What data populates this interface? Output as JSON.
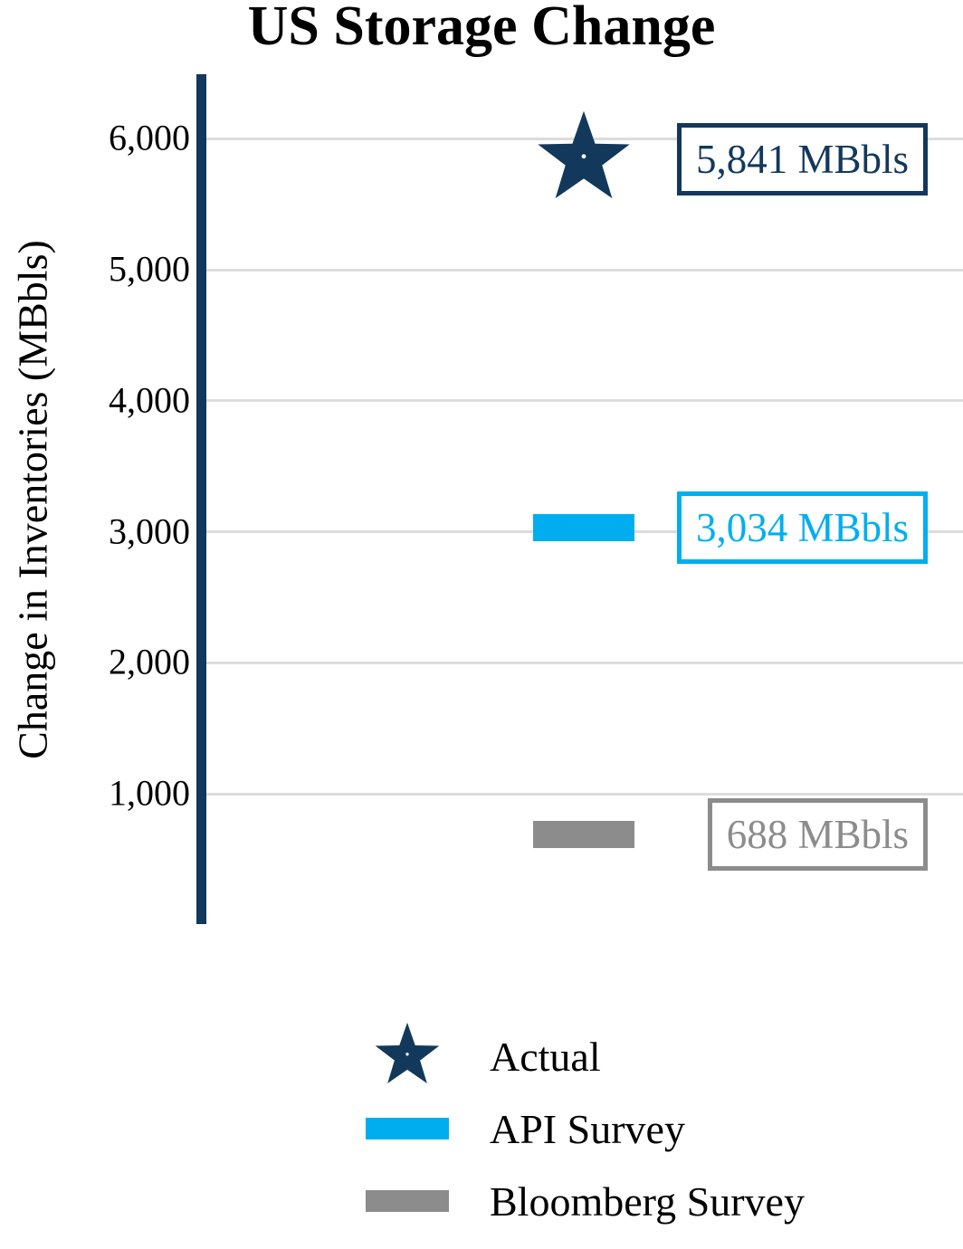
{
  "chart_data": {
    "type": "scatter",
    "title": "US Storage Change",
    "xlabel": "",
    "ylabel": "Change in Inventories (MBbls)",
    "unit": "MBbls",
    "ylim": [
      0,
      6480
    ],
    "grid": true,
    "legend_position": "bottom",
    "yticks": [
      {
        "value": 1000,
        "label": "1,000"
      },
      {
        "value": 2000,
        "label": "2,000"
      },
      {
        "value": 3000,
        "label": "3,000"
      },
      {
        "value": 4000,
        "label": "4,000"
      },
      {
        "value": 5000,
        "label": "5,000"
      },
      {
        "value": 6000,
        "label": "6,000"
      }
    ],
    "series": [
      {
        "name": "Actual",
        "marker": "star",
        "value": 5841,
        "label": "5,841 MBbls",
        "color": "#12385c"
      },
      {
        "name": "API Survey",
        "marker": "bar",
        "value": 3034,
        "label": "3,034 MBbls",
        "color": "#00aeef"
      },
      {
        "name": "Bloomberg Survey",
        "marker": "bar",
        "value": 688,
        "label": "688 MBbls",
        "color": "#8c8c8c"
      }
    ]
  },
  "colors": {
    "axis": "#12385c",
    "gridline": "#dcdcdc",
    "background": "#ffffff",
    "text": "#000000"
  }
}
